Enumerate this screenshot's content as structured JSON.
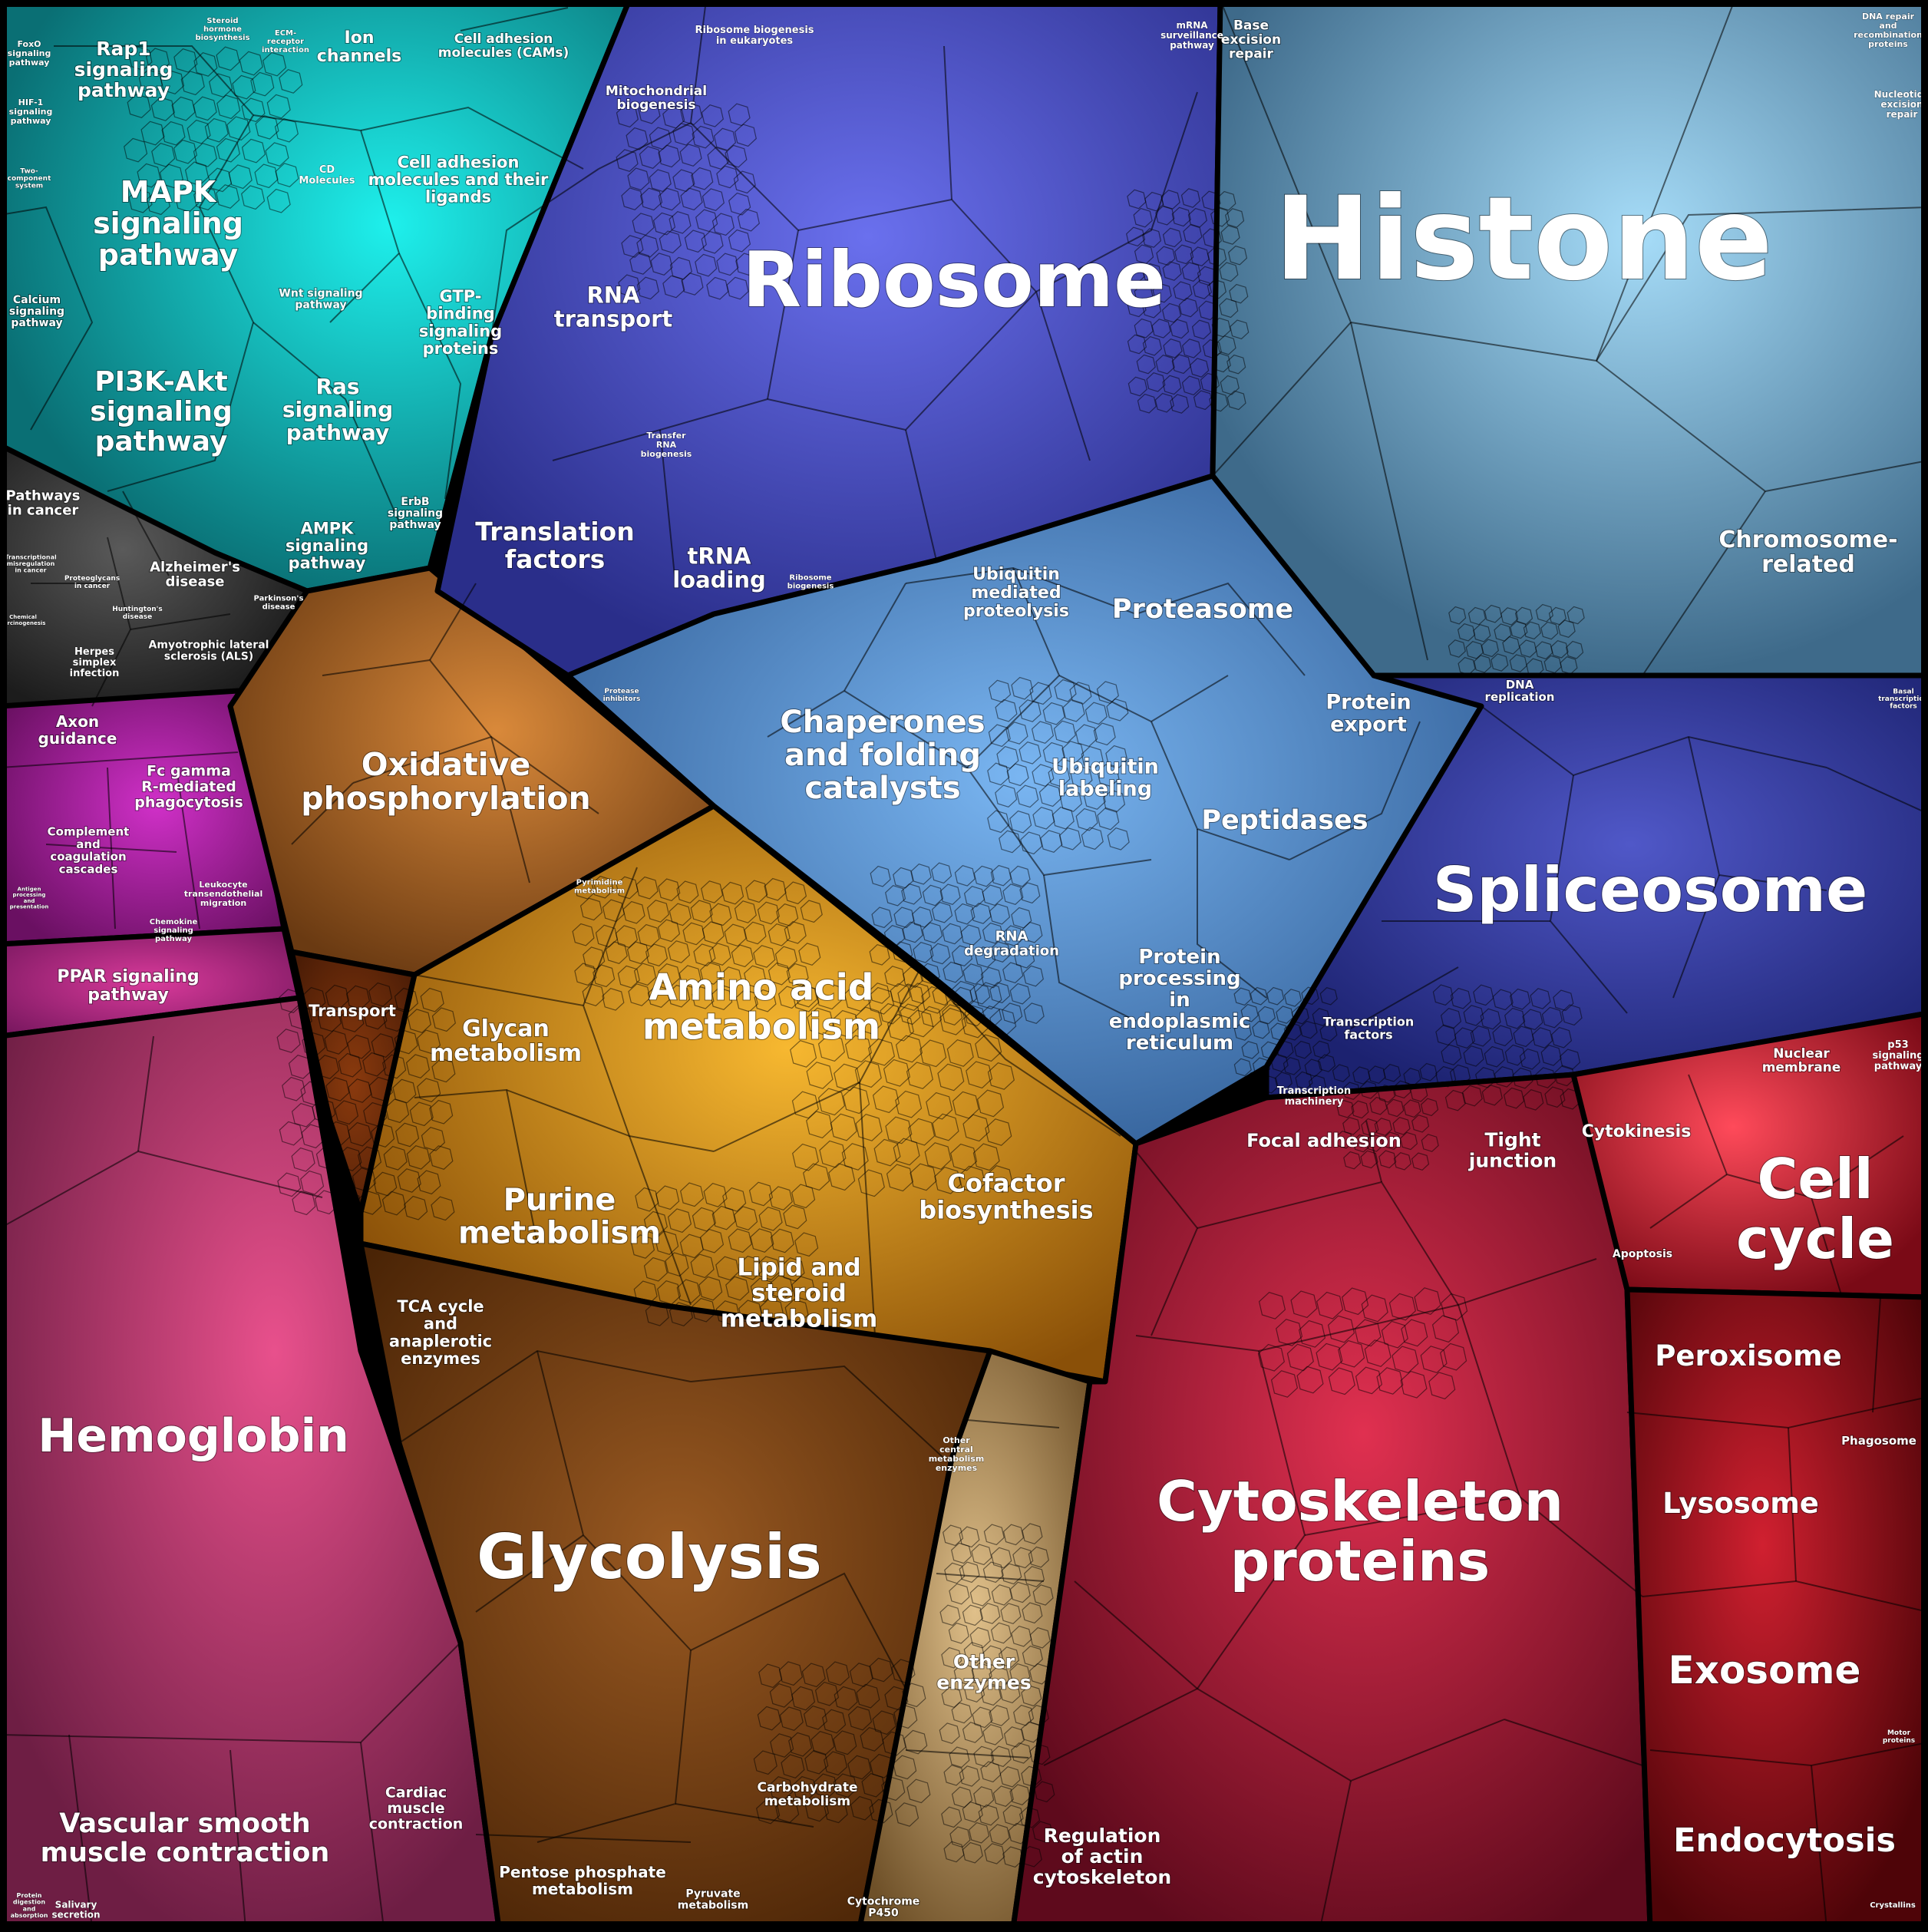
{
  "colors": {
    "teal": "#0fb5b5",
    "teal_light": "#1ef0ec",
    "dark": "#3a3a3a",
    "magenta": "#b21ca8",
    "pink": "#c03a78",
    "pink_light": "#e8508c",
    "brown": "#b56a2a",
    "brown_light": "#d9893a",
    "orange": "#e69a1e",
    "orange_light": "#f7b830",
    "tan": "#c9a56a",
    "royal": "#4c52c8",
    "royal_light": "#6a70ee",
    "steel": "#5a96d8",
    "steel_light": "#7ab6f2",
    "skyblue": "#76acd0",
    "skyblue_light": "#a6dcf8",
    "navy": "#3a42a8",
    "navy_light": "#5058c8",
    "crimson": "#b01c3c",
    "crimson_light": "#e03050",
    "darkred": "#a8101a",
    "darkred_light": "#d02030"
  },
  "labels": {
    "histone": "Histone",
    "chromosome_related": "Chromosome-\nrelated",
    "base_excision": "Base\nexcision\nrepair",
    "dna_repair": "DNA repair\nand\nrecombination\nproteins",
    "nucleotide_excision": "Nucleotide\nexcision\nrepair",
    "dna_replication": "DNA\nreplication",
    "basal_tf": "Basal\ntranscription\nfactors",
    "ribosome": "Ribosome",
    "ribosome_biogenesis_euk": "Ribosome biogenesis\nin eukaryotes",
    "mrna_surveillance": "mRNA\nsurveillance\npathway",
    "mitochondrial_biogenesis": "Mitochondrial\nbiogenesis",
    "rna_transport": "RNA\ntransport",
    "transfer_rna_biogenesis": "Transfer\nRNA\nbiogenesis",
    "translation_factors": "Translation\nfactors",
    "trna_loading": "tRNA\nloading",
    "ribosome_biogenesis": "Ribosome\nbiogenesis",
    "ubiquitin_proteolysis": "Ubiquitin\nmediated\nproteolysis",
    "proteasome": "Proteasome",
    "protein_export": "Protein\nexport",
    "chaperones": "Chaperones\nand folding\ncatalysts",
    "ubiquitin_labeling": "Ubiquitin\nlabeling",
    "peptidases": "Peptidases",
    "protease_inhibitors": "Protease\ninhibitors",
    "rna_degradation": "RNA\ndegradation",
    "protein_processing_er": "Protein\nprocessing\nin\nendoplasmic\nreticulum",
    "spliceosome": "Spliceosome",
    "transcription_factors": "Transcription\nfactors",
    "transcription_machinery": "Transcription\nmachinery",
    "rap1": "Rap1\nsignaling\npathway",
    "ion_channels": "Ion\nchannels",
    "cams": "Cell adhesion\nmolecules (CAMs)",
    "foxo": "FoxO\nsignaling\npathway",
    "hif1": "HIF-1\nsignaling\npathway",
    "two_component": "Two-\ncomponent\nsystem",
    "mapk": "MAPK\nsignaling\npathway",
    "cd_molecules": "CD\nMolecules",
    "cell_adhesion_ligands": "Cell adhesion\nmolecules and their\nligands",
    "calcium": "Calcium\nsignaling\npathway",
    "wnt": "Wnt signaling\npathway",
    "gtp_binding": "GTP-\nbinding\nsignaling\nproteins",
    "pi3k": "PI3K-Akt\nsignaling\npathway",
    "ras": "Ras\nsignaling\npathway",
    "ampk": "AMPK\nsignaling\npathway",
    "erbb": "ErbB\nsignaling\npathway",
    "steroid_hormone": "Steroid\nhormone\nbiosynthesis",
    "ecm_receptor": "ECM-\nreceptor\ninteraction",
    "pathways_cancer": "Pathways\nin cancer",
    "alzheimers": "Alzheimer's\ndisease",
    "parkinsons": "Parkinson's\ndisease",
    "huntingtons": "Huntington's\ndisease",
    "proteoglycans": "Proteoglycans\nin cancer",
    "transcriptional_misreg": "Transcriptional\nmisregulation\nin cancer",
    "chemical_carcinogenesis": "Chemical\ncarcinogenesis",
    "herpes": "Herpes\nsimplex\ninfection",
    "als": "Amyotrophic lateral\nsclerosis (ALS)",
    "axon_guidance": "Axon\nguidance",
    "fc_gamma": "Fc gamma\nR-mediated\nphagocytosis",
    "complement": "Complement\nand\ncoagulation\ncascades",
    "leukocyte": "Leukocyte\ntransendothelial\nmigration",
    "chemokine": "Chemokine\nsignaling\npathway",
    "antigen": "Antigen\nprocessing\nand\npresentation",
    "ppar": "PPAR signaling\npathway",
    "hemoglobin": "Hemoglobin",
    "vascular_smooth": "Vascular smooth\nmuscle contraction",
    "cardiac_muscle": "Cardiac\nmuscle\ncontraction",
    "protein_digestion": "Protein\ndigestion\nand\nabsorption",
    "salivary": "Salivary\nsecretion",
    "oxidative_phos": "Oxidative\nphosphorylation",
    "transport": "Transport",
    "pyrimidine": "Pyrimidine\nmetabolism",
    "amino_acid": "Amino acid\nmetabolism",
    "glycan": "Glycan\nmetabolism",
    "purine": "Purine\nmetabolism",
    "cofactor": "Cofactor\nbiosynthesis",
    "lipid_steroid": "Lipid and\nsteroid\nmetabolism",
    "tca": "TCA cycle\nand\nanaplerotic\nenzymes",
    "glycolysis": "Glycolysis",
    "other_central": "Other\ncentral\nmetabolism\nenzymes",
    "carbohydrate": "Carbohydrate\nmetabolism",
    "pentose_phosphate": "Pentose phosphate\nmetabolism",
    "pyruvate": "Pyruvate\nmetabolism",
    "other_enzymes": "Other\nenzymes",
    "cytochrome": "Cytochrome\nP450",
    "focal_adhesion": "Focal adhesion",
    "tight_junction": "Tight\njunction",
    "cytokinesis": "Cytokinesis",
    "nuclear_membrane": "Nuclear\nmembrane",
    "p53": "p53\nsignaling\npathway",
    "cell_cycle": "Cell\ncycle",
    "apoptosis": "Apoptosis",
    "peroxisome": "Peroxisome",
    "phagosome": "Phagosome",
    "lysosome": "Lysosome",
    "exosome": "Exosome",
    "endocytosis": "Endocytosis",
    "motor_proteins": "Motor\nproteins",
    "crystallins": "Crystallins",
    "cytoskeleton": "Cytoskeleton\nproteins",
    "regulation_actin": "Regulation\nof actin\ncytoskeleton"
  }
}
